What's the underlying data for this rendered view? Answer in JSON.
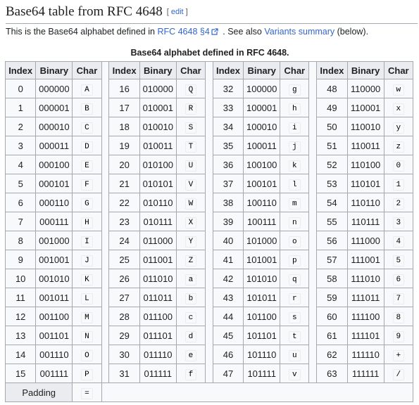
{
  "heading": {
    "title": "Base64 table from RFC 4648",
    "edit_open": "[",
    "edit_link": "edit",
    "edit_close": "]"
  },
  "intro": {
    "text_before": "This is the Base64 alphabet defined in ",
    "link1": "RFC 4648 §4",
    "text_middle": " . See also ",
    "link2": "Variants summary",
    "text_after": " (below)."
  },
  "table": {
    "caption": "Base64 alphabet defined in RFC 4648.",
    "headers": [
      "Index",
      "Binary",
      "Char"
    ],
    "groups": [
      [
        [
          "0",
          "000000",
          "A"
        ],
        [
          "1",
          "000001",
          "B"
        ],
        [
          "2",
          "000010",
          "C"
        ],
        [
          "3",
          "000011",
          "D"
        ],
        [
          "4",
          "000100",
          "E"
        ],
        [
          "5",
          "000101",
          "F"
        ],
        [
          "6",
          "000110",
          "G"
        ],
        [
          "7",
          "000111",
          "H"
        ],
        [
          "8",
          "001000",
          "I"
        ],
        [
          "9",
          "001001",
          "J"
        ],
        [
          "10",
          "001010",
          "K"
        ],
        [
          "11",
          "001011",
          "L"
        ],
        [
          "12",
          "001100",
          "M"
        ],
        [
          "13",
          "001101",
          "N"
        ],
        [
          "14",
          "001110",
          "O"
        ],
        [
          "15",
          "001111",
          "P"
        ]
      ],
      [
        [
          "16",
          "010000",
          "Q"
        ],
        [
          "17",
          "010001",
          "R"
        ],
        [
          "18",
          "010010",
          "S"
        ],
        [
          "19",
          "010011",
          "T"
        ],
        [
          "20",
          "010100",
          "U"
        ],
        [
          "21",
          "010101",
          "V"
        ],
        [
          "22",
          "010110",
          "W"
        ],
        [
          "23",
          "010111",
          "X"
        ],
        [
          "24",
          "011000",
          "Y"
        ],
        [
          "25",
          "011001",
          "Z"
        ],
        [
          "26",
          "011010",
          "a"
        ],
        [
          "27",
          "011011",
          "b"
        ],
        [
          "28",
          "011100",
          "c"
        ],
        [
          "29",
          "011101",
          "d"
        ],
        [
          "30",
          "011110",
          "e"
        ],
        [
          "31",
          "011111",
          "f"
        ]
      ],
      [
        [
          "32",
          "100000",
          "g"
        ],
        [
          "33",
          "100001",
          "h"
        ],
        [
          "34",
          "100010",
          "i"
        ],
        [
          "35",
          "100011",
          "j"
        ],
        [
          "36",
          "100100",
          "k"
        ],
        [
          "37",
          "100101",
          "l"
        ],
        [
          "38",
          "100110",
          "m"
        ],
        [
          "39",
          "100111",
          "n"
        ],
        [
          "40",
          "101000",
          "o"
        ],
        [
          "41",
          "101001",
          "p"
        ],
        [
          "42",
          "101010",
          "q"
        ],
        [
          "43",
          "101011",
          "r"
        ],
        [
          "44",
          "101100",
          "s"
        ],
        [
          "45",
          "101101",
          "t"
        ],
        [
          "46",
          "101110",
          "u"
        ],
        [
          "47",
          "101111",
          "v"
        ]
      ],
      [
        [
          "48",
          "110000",
          "w"
        ],
        [
          "49",
          "110001",
          "x"
        ],
        [
          "50",
          "110010",
          "y"
        ],
        [
          "51",
          "110011",
          "z"
        ],
        [
          "52",
          "110100",
          "0"
        ],
        [
          "53",
          "110101",
          "1"
        ],
        [
          "54",
          "110110",
          "2"
        ],
        [
          "55",
          "110111",
          "3"
        ],
        [
          "56",
          "111000",
          "4"
        ],
        [
          "57",
          "111001",
          "5"
        ],
        [
          "58",
          "111010",
          "6"
        ],
        [
          "59",
          "111011",
          "7"
        ],
        [
          "60",
          "111100",
          "8"
        ],
        [
          "61",
          "111101",
          "9"
        ],
        [
          "62",
          "111110",
          "+"
        ],
        [
          "63",
          "111111",
          "/"
        ]
      ]
    ],
    "padding_label": "Padding",
    "padding_char": "="
  },
  "colors": {
    "link": "#3366cc",
    "border": "#a2a9b1",
    "header_bg": "#eaecf0",
    "cell_bg": "#f8f9fa"
  },
  "icons": {
    "external_link": "external-link-icon"
  }
}
